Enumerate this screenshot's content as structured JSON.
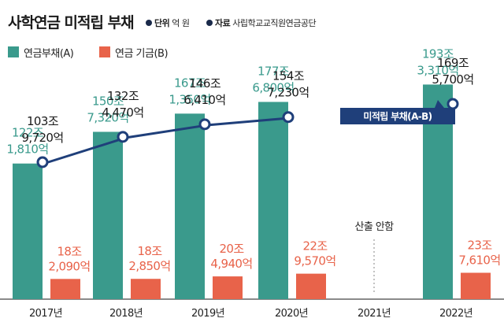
{
  "title": "사학연금 미적립 부채",
  "unit_label": "단위",
  "unit_value": "억 원",
  "source_label": "자료",
  "source_value": "사립학교교직원연금공단",
  "colors": {
    "fund_liability": "#3a9a8c",
    "fund_assets": "#e8634a",
    "unfunded_line": "#1f3f7a",
    "callout_bg": "#1f3f7a"
  },
  "chart_data": {
    "type": "bar",
    "categories": [
      "2017년",
      "2018년",
      "2019년",
      "2020년",
      "2021년",
      "2022년"
    ],
    "series": [
      {
        "name": "연금부채(A)",
        "values": [
          1221810,
          1507320,
          1671350,
          1776800,
          null,
          1933310
        ],
        "labels": [
          [
            "122조",
            "1,810억"
          ],
          [
            "150조",
            "7,320억"
          ],
          [
            "167조",
            "1,350억"
          ],
          [
            "177조",
            "6,800억"
          ],
          null,
          [
            "193조",
            "3,310억"
          ]
        ]
      },
      {
        "name": "연금 기금(B)",
        "values": [
          182090,
          182850,
          204940,
          229570,
          null,
          237610
        ],
        "labels": [
          [
            "18조",
            "2,090억"
          ],
          [
            "18조",
            "2,850억"
          ],
          [
            "20조",
            "4,940억"
          ],
          [
            "22조",
            "9,570억"
          ],
          null,
          [
            "23조",
            "7,610억"
          ]
        ]
      },
      {
        "name": "미적립 부채(A-B)",
        "type": "line",
        "values": [
          1039720,
          1324470,
          1466410,
          1547230,
          null,
          1695700
        ],
        "labels": [
          [
            "103조",
            "9,720억"
          ],
          [
            "132조",
            "4,470억"
          ],
          [
            "146조",
            "6,410억"
          ],
          [
            "154조",
            "7,230억"
          ],
          null,
          [
            "169조",
            "5,700억"
          ]
        ]
      }
    ],
    "annotations": [
      "산출 안함"
    ],
    "callout": "미적립 부채(A-B)",
    "grid": false
  }
}
